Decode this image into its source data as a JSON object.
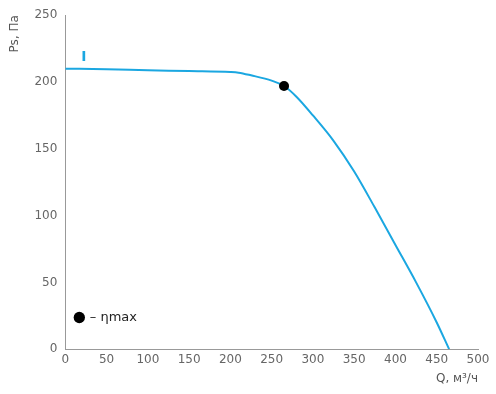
{
  "chart_data": {
    "type": "line",
    "x_label": "Q, м³/ч",
    "y_label": "Ps, Па",
    "xlim": [
      0,
      500
    ],
    "xticks": [
      0,
      50,
      100,
      150,
      200,
      250,
      300,
      350,
      400,
      450,
      500
    ],
    "ylim": [
      0,
      250
    ],
    "yticks": [
      0,
      50,
      100,
      150,
      200,
      250
    ],
    "grid": false,
    "legend": "top-right",
    "series": [
      {
        "name": "I",
        "color": "#1ba7e1",
        "line_style": "solid",
        "marker": "none",
        "x": [
          0,
          50,
          100,
          150,
          200,
          210,
          225,
          250,
          265,
          280,
          300,
          325,
          350,
          375,
          400,
          425,
          450,
          465
        ],
        "values": [
          210,
          209.5,
          208.8,
          208.2,
          207.5,
          207,
          205,
          201,
          197,
          189,
          175,
          156,
          133,
          106,
          78,
          50,
          20,
          0
        ]
      },
      {
        "name": "– ηmax",
        "color": "#000000",
        "line_style": "none",
        "marker": "circle",
        "x": [
          265
        ],
        "values": [
          197
        ]
      }
    ]
  }
}
